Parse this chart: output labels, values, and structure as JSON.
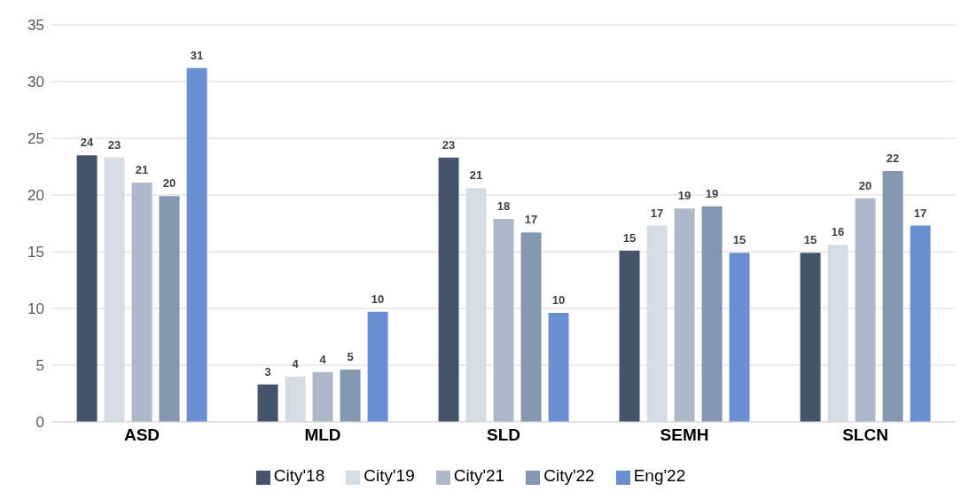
{
  "chart_data": {
    "type": "bar",
    "categories": [
      "ASD",
      "MLD",
      "SLD",
      "SEMH",
      "SLCN"
    ],
    "series": [
      {
        "name": "City'18",
        "color": "#44546a",
        "values": [
          23.5,
          3.3,
          23.3,
          15.1,
          14.9
        ],
        "value_labels": [
          "24",
          "3",
          "23",
          "15",
          "15"
        ]
      },
      {
        "name": "City'19",
        "color": "#d6dce4",
        "values": [
          23.3,
          4.0,
          20.6,
          17.3,
          15.6
        ],
        "value_labels": [
          "23",
          "4",
          "21",
          "17",
          "16"
        ]
      },
      {
        "name": "City'21",
        "color": "#adb9ca",
        "values": [
          21.1,
          4.4,
          17.9,
          18.8,
          19.7
        ],
        "value_labels": [
          "21",
          "4",
          "18",
          "19",
          "20"
        ]
      },
      {
        "name": "City'22",
        "color": "#8497b0",
        "values": [
          19.9,
          4.6,
          16.7,
          19.0,
          22.1
        ],
        "value_labels": [
          "20",
          "5",
          "17",
          "19",
          "22"
        ]
      },
      {
        "name": "Eng'22",
        "color": "#6a8fd0",
        "values": [
          31.2,
          9.7,
          9.6,
          14.9,
          17.3
        ],
        "value_labels": [
          "31",
          "10",
          "10",
          "15",
          "17"
        ]
      }
    ],
    "ylim": [
      0,
      35
    ],
    "yticks": [
      0,
      5,
      10,
      15,
      20,
      25,
      30,
      35
    ],
    "grid": "y",
    "legend": "bottom"
  }
}
